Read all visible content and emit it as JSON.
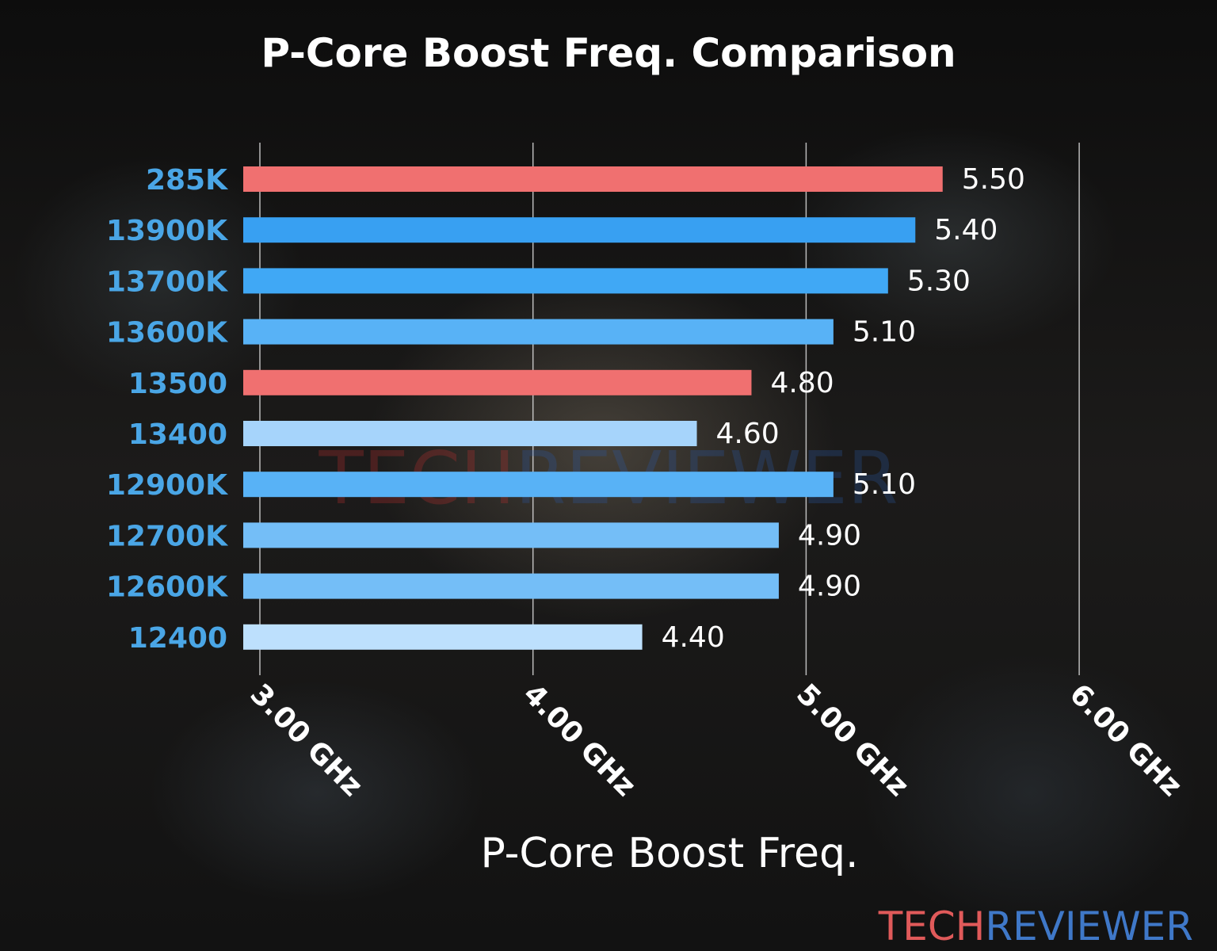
{
  "chart_data": {
    "type": "bar",
    "orientation": "horizontal",
    "title": "P-Core Boost Freq. Comparison",
    "xlabel": "P-Core Boost Freq.",
    "ylabel": "",
    "xlim": [
      3.0,
      6.0
    ],
    "xticks": [
      3.0,
      4.0,
      5.0,
      6.0
    ],
    "xtick_labels": [
      "3.00 GHz",
      "4.00 GHz",
      "5.00 GHz",
      "6.00 GHz"
    ],
    "grid": "vertical",
    "categories": [
      "285K",
      "13900K",
      "13700K",
      "13600K",
      "13500",
      "13400",
      "12900K",
      "12700K",
      "12600K",
      "12400"
    ],
    "values": [
      5.5,
      5.4,
      5.3,
      5.1,
      4.8,
      4.6,
      5.1,
      4.9,
      4.9,
      4.4
    ],
    "value_labels": [
      "5.50",
      "5.40",
      "5.30",
      "5.10",
      "4.80",
      "4.60",
      "5.10",
      "4.90",
      "4.90",
      "4.40"
    ],
    "bar_colors": [
      "#f07070",
      "#38a0f2",
      "#40a8f5",
      "#58b2f6",
      "#f07070",
      "#a6d4fb",
      "#58b2f6",
      "#74bef7",
      "#74bef7",
      "#bde0fd"
    ]
  },
  "colors": {
    "category_label": "#4aa6e6",
    "text": "#ffffff",
    "grid": "#d8d8d8"
  },
  "watermark": {
    "part1": "TECH",
    "part2": "REVIEWER",
    "color1": "#e05a5a",
    "color2": "#3f78c8"
  }
}
